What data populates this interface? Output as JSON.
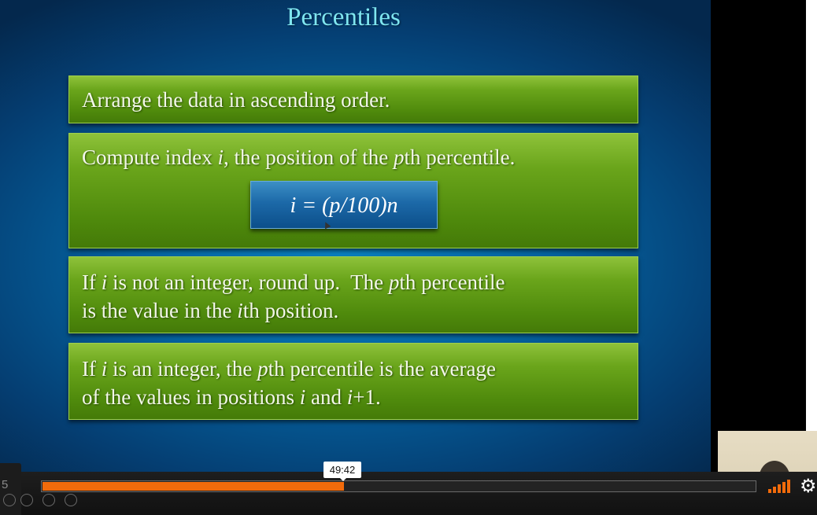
{
  "slide": {
    "title": "Percentiles",
    "box1": {
      "text": "Arrange the data in ascending order."
    },
    "box2": {
      "line1_a": "Compute index ",
      "line1_i": "i",
      "line1_b": ", the position of the ",
      "line1_p": "p",
      "line1_c": "th percentile."
    },
    "formula": {
      "text": "i = (p/100)n"
    },
    "box3": {
      "l1_a": "If ",
      "l1_i": "i",
      "l1_b": " is not an integer, round up.  The ",
      "l1_p": "p",
      "l1_c": "th percentile",
      "l2_a": "is the value in the ",
      "l2_i": "i",
      "l2_b": "th position."
    },
    "box4": {
      "l1_a": "If ",
      "l1_i": "i",
      "l1_b": " is an integer, the ",
      "l1_p": "p",
      "l1_c": "th percentile is the average",
      "l2_a": "of the values in positions ",
      "l2_i1": "i",
      "l2_b": " and ",
      "l2_i2": "i",
      "l2_c": "+1."
    }
  },
  "player": {
    "time_tooltip": "49:42",
    "progress": 0.423,
    "side_label": "5",
    "volume_icon": "volume-bars-icon",
    "settings_icon": "gear-icon",
    "accent_color": "#f26b0b"
  }
}
